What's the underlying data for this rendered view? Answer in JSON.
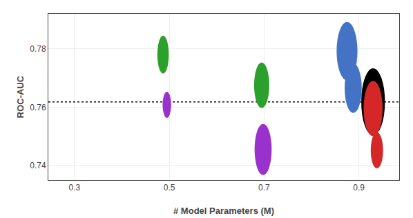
{
  "chart_data": {
    "type": "scatter",
    "x": [
      0.487,
      0.495,
      0.695,
      0.698,
      0.875,
      0.888,
      0.93,
      0.93,
      0.938
    ],
    "values": [
      0.778,
      0.7608,
      0.7675,
      0.7455,
      0.7792,
      0.7665,
      0.7618,
      0.7595,
      0.7452
    ],
    "colors": [
      "#2ca02c",
      "#9932CC",
      "#2ca02c",
      "#9932CC",
      "#4472c4",
      "#4472c4",
      "#000000",
      "#d62728",
      "#d62728"
    ],
    "rx": [
      0.012,
      0.009,
      0.016,
      0.018,
      0.022,
      0.018,
      0.025,
      0.02,
      0.013
    ],
    "ry": [
      0.0065,
      0.0045,
      0.0078,
      0.0088,
      0.01,
      0.0085,
      0.0115,
      0.0095,
      0.0062
    ],
    "hline": 0.7618,
    "xlabel": "# Model Parameters (M)",
    "ylabel": "ROC-AUC",
    "xlim": [
      0.245,
      0.985
    ],
    "ylim": [
      0.735,
      0.792
    ],
    "xticks": [
      0.3,
      0.5,
      0.7,
      0.9
    ],
    "yticks": [
      0.74,
      0.76,
      0.78
    ],
    "grid": true
  }
}
